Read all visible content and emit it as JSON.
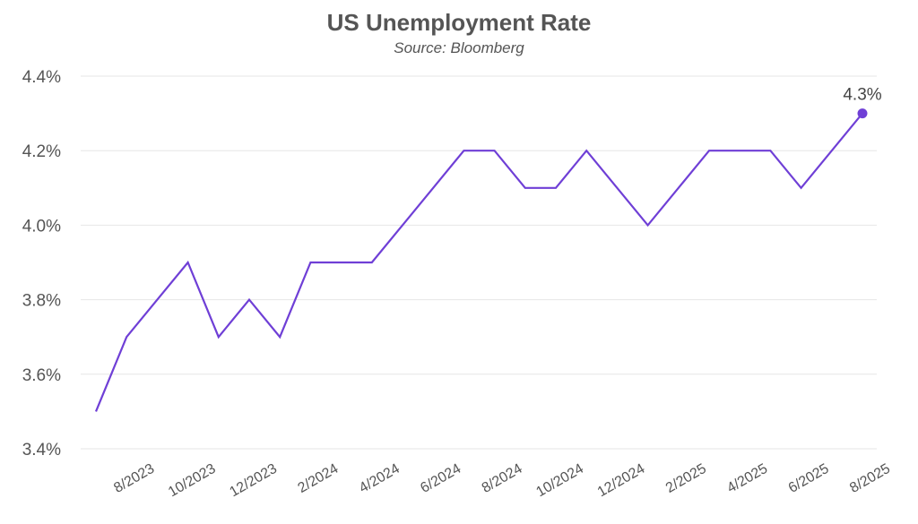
{
  "chart_data": {
    "type": "line",
    "title": "US Unemployment Rate",
    "subtitle": "Source: Bloomberg",
    "xlabel": "",
    "ylabel": "",
    "ylim": [
      3.4,
      4.4
    ],
    "yticks": [
      "3.4%",
      "3.6%",
      "3.8%",
      "4.0%",
      "4.2%",
      "4.4%"
    ],
    "ytick_values": [
      3.4,
      3.6,
      3.8,
      4.0,
      4.2,
      4.4
    ],
    "xtick_labels": [
      "8/2023",
      "10/2023",
      "12/2023",
      "2/2024",
      "4/2024",
      "6/2024",
      "8/2024",
      "10/2024",
      "12/2024",
      "2/2025",
      "4/2025",
      "6/2025",
      "8/2025"
    ],
    "x": [
      "7/2023",
      "8/2023",
      "9/2023",
      "10/2023",
      "11/2023",
      "12/2023",
      "1/2024",
      "2/2024",
      "3/2024",
      "4/2024",
      "5/2024",
      "6/2024",
      "7/2024",
      "8/2024",
      "9/2024",
      "10/2024",
      "11/2024",
      "12/2024",
      "1/2025",
      "2/2025",
      "3/2025",
      "4/2025",
      "5/2025",
      "6/2025",
      "7/2025",
      "8/2025"
    ],
    "series": [
      {
        "values": [
          3.5,
          3.7,
          3.8,
          3.9,
          3.7,
          3.8,
          3.7,
          3.9,
          3.9,
          3.9,
          4.0,
          4.1,
          4.2,
          4.2,
          4.1,
          4.1,
          4.2,
          4.1,
          4.0,
          4.1,
          4.2,
          4.2,
          4.2,
          4.1,
          4.2,
          4.3
        ],
        "color": "#6f3fd6"
      }
    ],
    "last_point_label": "4.3%",
    "grid": true,
    "legend": "none"
  }
}
